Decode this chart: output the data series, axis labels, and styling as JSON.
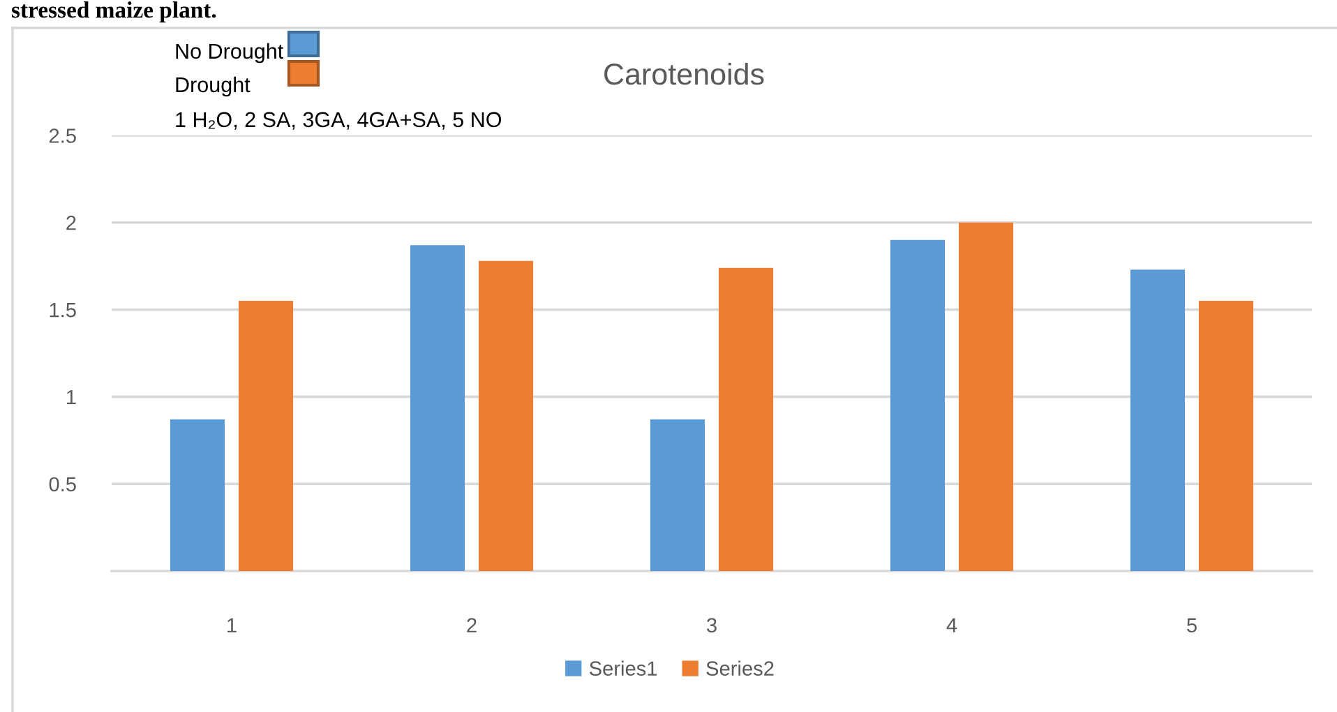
{
  "chart_data": {
    "type": "bar",
    "title": "Carotenoids",
    "annotations": [
      "stressed maize plant.",
      "No Drought",
      "Drought",
      "1 H₂O, 2 SA, 3GA, 4GA+SA, 5 NO"
    ],
    "categories": [
      "1",
      "2",
      "3",
      "4",
      "5"
    ],
    "series": [
      {
        "name": "Series1",
        "color": "#5b9bd5",
        "values": [
          0.87,
          1.87,
          0.87,
          1.9,
          1.73
        ]
      },
      {
        "name": "Series2",
        "color": "#ed7d31",
        "values": [
          1.55,
          1.78,
          1.74,
          2.0,
          1.55
        ]
      }
    ],
    "ylim": [
      0,
      2.5
    ],
    "yticks": [
      0.5,
      1,
      1.5,
      2,
      2.5
    ],
    "grid": "y",
    "legend": "bottom"
  }
}
